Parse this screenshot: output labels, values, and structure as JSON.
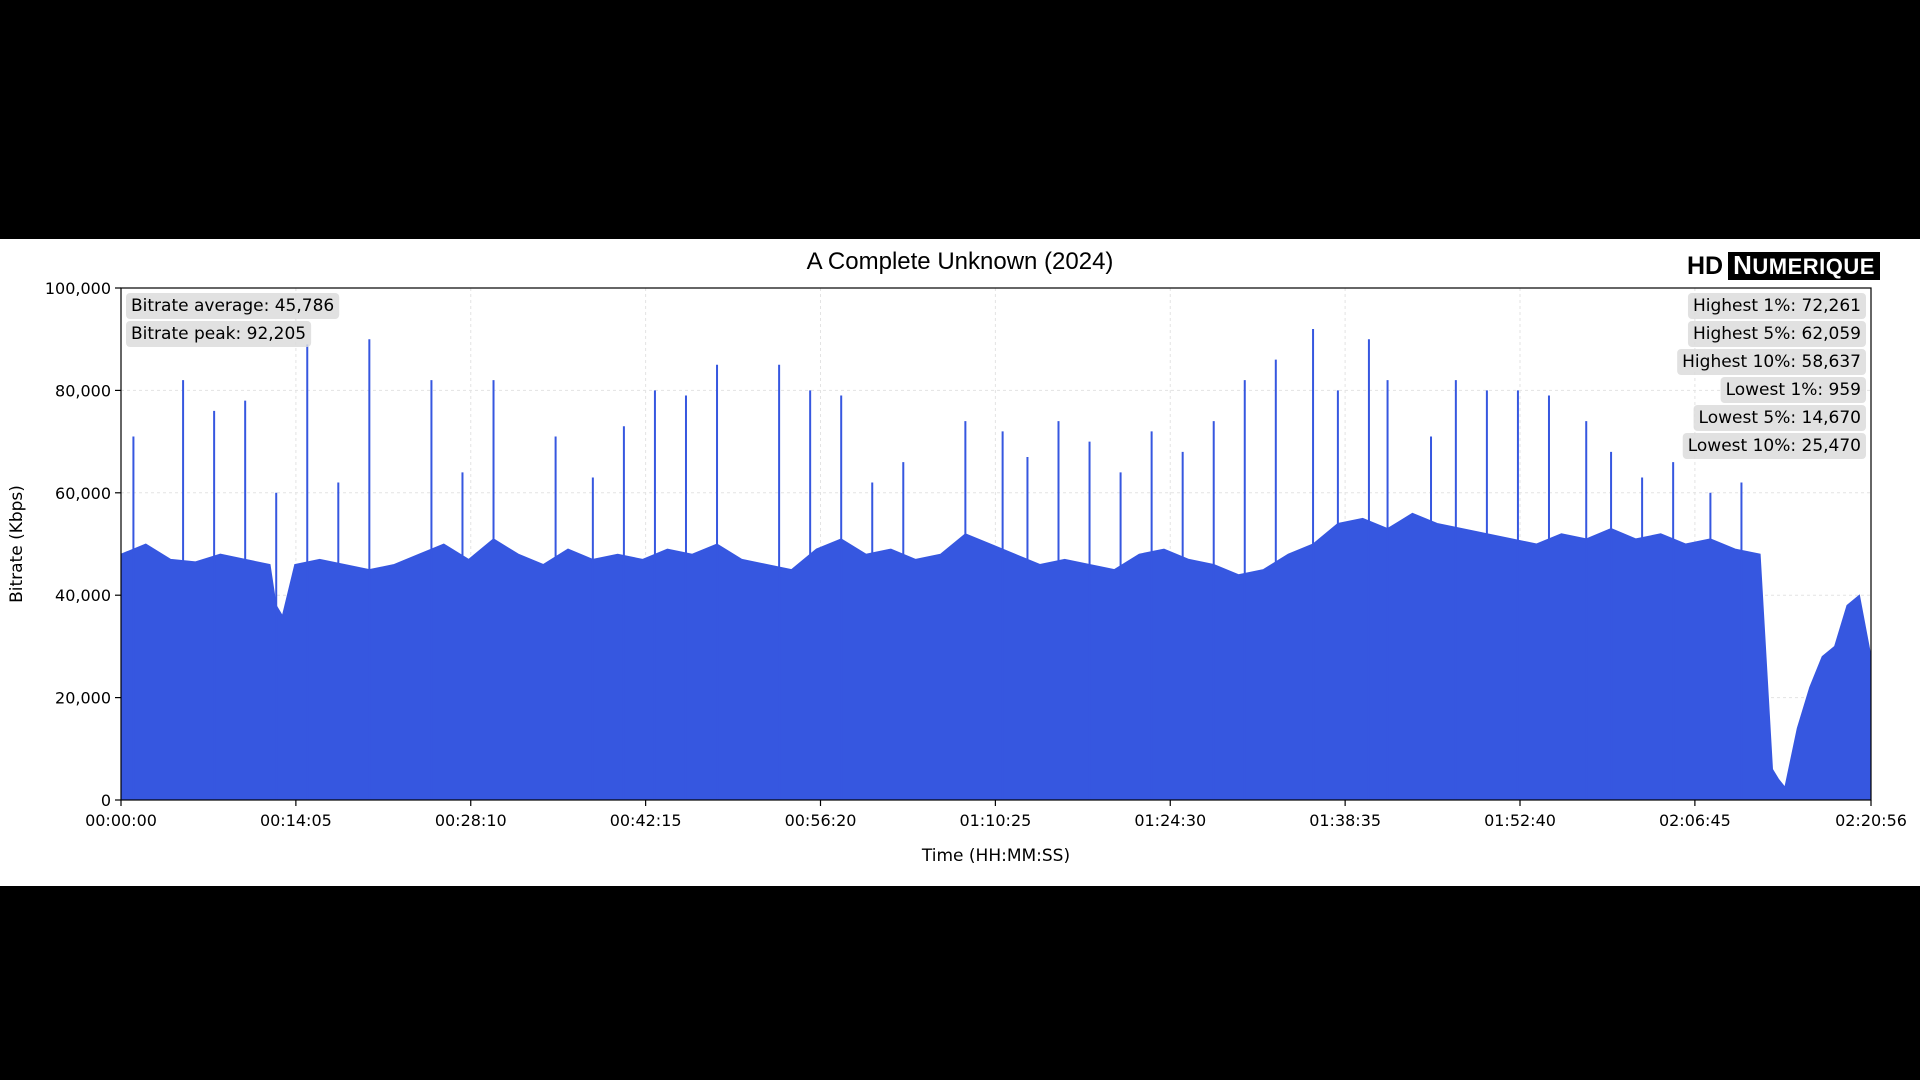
{
  "chart_data": {
    "type": "area",
    "title": "A Complete Unknown (2024)",
    "xlabel": "Time (HH:MM:SS)",
    "ylabel": "Bitrate (Kbps)",
    "xlim_seconds": [
      0,
      8456
    ],
    "ylim": [
      0,
      100000
    ],
    "x_tick_labels": [
      "00:00:00",
      "00:14:05",
      "00:28:10",
      "00:42:15",
      "00:56:20",
      "01:10:25",
      "01:24:30",
      "01:38:35",
      "01:52:40",
      "02:06:45",
      "02:20:56"
    ],
    "y_tick_labels": [
      "0",
      "20,000",
      "40,000",
      "60,000",
      "80,000",
      "100,000"
    ],
    "grid": true,
    "fill_color": "#3657E0",
    "stats_left": [
      "Bitrate average: 45,786",
      "Bitrate peak: 92,205"
    ],
    "stats_right": [
      "Highest 1%: 72,261",
      "Highest 5%: 62,059",
      "Highest 10%: 58,637",
      "Lowest 1%: 959",
      "Lowest 5%: 14,670",
      "Lowest 10%: 25,470"
    ],
    "series": [
      {
        "x_unit": "HH:MM:SS",
        "x": [
          "00:00:00",
          "00:02:00",
          "00:04:00",
          "00:06:00",
          "00:08:00",
          "00:10:00",
          "00:12:00",
          "00:12:30",
          "00:13:00",
          "00:14:00",
          "00:16:00",
          "00:18:00",
          "00:20:00",
          "00:22:00",
          "00:24:00",
          "00:26:00",
          "00:28:00",
          "00:30:00",
          "00:32:00",
          "00:34:00",
          "00:36:00",
          "00:38:00",
          "00:40:00",
          "00:42:00",
          "00:44:00",
          "00:46:00",
          "00:48:00",
          "00:50:00",
          "00:52:00",
          "00:54:00",
          "00:56:00",
          "00:58:00",
          "01:00:00",
          "01:02:00",
          "01:04:00",
          "01:06:00",
          "01:08:00",
          "01:10:00",
          "01:12:00",
          "01:14:00",
          "01:16:00",
          "01:18:00",
          "01:20:00",
          "01:22:00",
          "01:24:00",
          "01:26:00",
          "01:28:00",
          "01:30:00",
          "01:32:00",
          "01:34:00",
          "01:36:00",
          "01:38:00",
          "01:40:00",
          "01:42:00",
          "01:44:00",
          "01:46:00",
          "01:48:00",
          "01:50:00",
          "01:52:00",
          "01:54:00",
          "01:56:00",
          "01:58:00",
          "02:00:00",
          "02:02:00",
          "02:04:00",
          "02:06:00",
          "02:08:00",
          "02:10:00",
          "02:12:00",
          "02:13:00",
          "02:13:30",
          "02:14:00",
          "02:15:00",
          "02:16:00",
          "02:17:00",
          "02:18:00",
          "02:19:00",
          "02:20:00",
          "02:20:56"
        ],
        "values": [
          48000,
          50000,
          47000,
          46500,
          48000,
          47000,
          46000,
          38000,
          36000,
          46000,
          47000,
          46000,
          45000,
          46000,
          48000,
          50000,
          47000,
          51000,
          48000,
          46000,
          49000,
          47000,
          48000,
          47000,
          49000,
          48000,
          50000,
          47000,
          46000,
          45000,
          49000,
          51000,
          48000,
          49000,
          47000,
          48000,
          52000,
          50000,
          48000,
          46000,
          47000,
          46000,
          45000,
          48000,
          49000,
          47000,
          46000,
          44000,
          45000,
          48000,
          50000,
          54000,
          55000,
          53000,
          56000,
          54000,
          53000,
          52000,
          51000,
          50000,
          52000,
          51000,
          53000,
          51000,
          52000,
          50000,
          51000,
          49000,
          48000,
          6000,
          4000,
          2500,
          14000,
          22000,
          28000,
          30000,
          38000,
          40000,
          28000
        ]
      }
    ],
    "spikes": {
      "x": [
        "00:01:00",
        "00:05:00",
        "00:07:30",
        "00:10:00",
        "00:12:30",
        "00:15:00",
        "00:17:30",
        "00:20:00",
        "00:25:00",
        "00:27:30",
        "00:30:00",
        "00:35:00",
        "00:38:00",
        "00:40:30",
        "00:43:00",
        "00:45:30",
        "00:48:00",
        "00:53:00",
        "00:55:30",
        "00:58:00",
        "01:00:30",
        "01:03:00",
        "01:08:00",
        "01:11:00",
        "01:13:00",
        "01:15:30",
        "01:18:00",
        "01:20:30",
        "01:23:00",
        "01:25:30",
        "01:28:00",
        "01:30:30",
        "01:33:00",
        "01:36:00",
        "01:38:00",
        "01:40:30",
        "01:42:00",
        "01:45:30",
        "01:47:30",
        "01:50:00",
        "01:52:30",
        "01:55:00",
        "01:58:00",
        "02:00:00",
        "02:02:30",
        "02:05:00",
        "02:08:00",
        "02:10:30"
      ],
      "values": [
        71000,
        82000,
        76000,
        78000,
        60000,
        89000,
        62000,
        90000,
        82000,
        64000,
        82000,
        71000,
        63000,
        73000,
        80000,
        79000,
        85000,
        85000,
        80000,
        79000,
        62000,
        66000,
        74000,
        72000,
        67000,
        74000,
        70000,
        64000,
        72000,
        68000,
        74000,
        82000,
        86000,
        92000,
        80000,
        90000,
        82000,
        71000,
        82000,
        80000,
        80000,
        79000,
        74000,
        68000,
        63000,
        66000,
        60000,
        62000
      ]
    }
  }
}
